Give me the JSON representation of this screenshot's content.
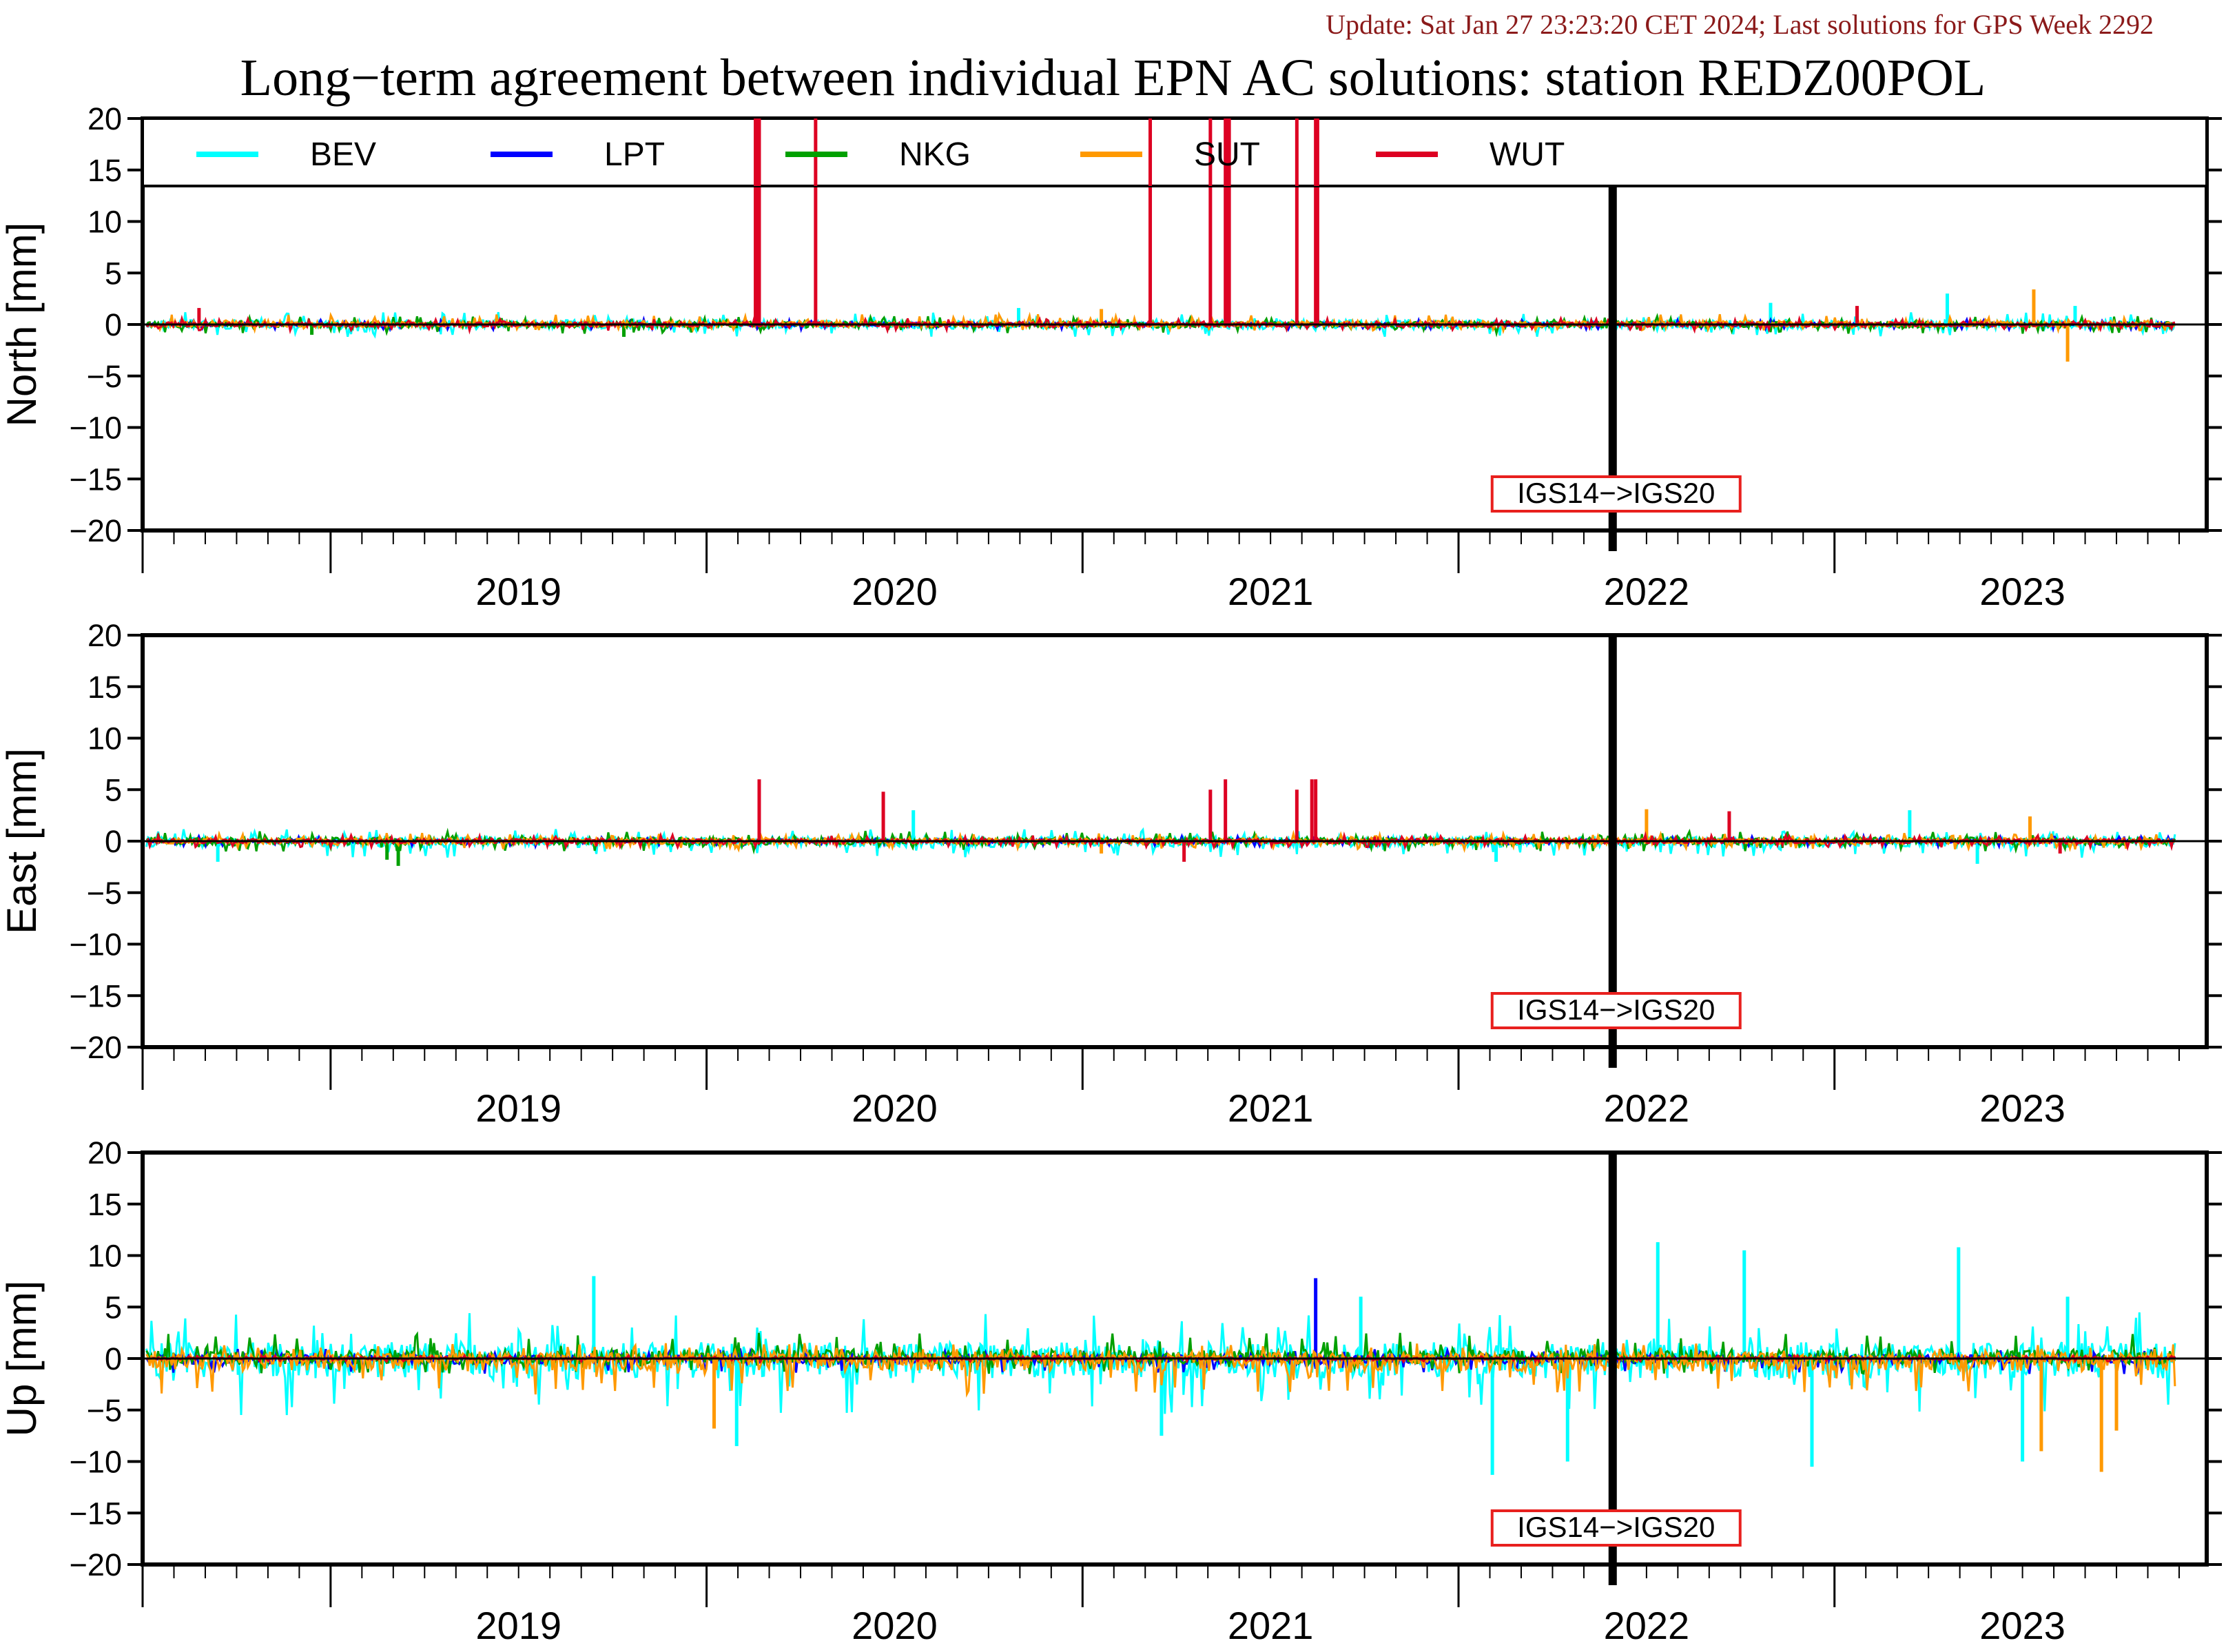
{
  "header": {
    "update_text": "Update: Sat Jan 27 23:23:20 CET 2024; Last solutions for GPS Week 2292",
    "title": "Long−term agreement between individual EPN AC solutions: station REDZ00POL"
  },
  "colors": {
    "update_text": "#8b1a1a",
    "frame": "#000000",
    "annotation_border": "#e8201e"
  },
  "legend": [
    {
      "name": "BEV",
      "color": "#00ffff"
    },
    {
      "name": "LPT",
      "color": "#0000ff"
    },
    {
      "name": "NKG",
      "color": "#00a000"
    },
    {
      "name": "SUT",
      "color": "#ff9900"
    },
    {
      "name": "WUT",
      "color": "#dd0022"
    }
  ],
  "chart_data": [
    {
      "type": "line",
      "panel": "north",
      "ylabel": "North [mm]",
      "ylim": [
        -20,
        20
      ],
      "yticks": [
        20,
        15,
        10,
        5,
        0,
        -5,
        -10,
        -15,
        -20
      ],
      "xlim": [
        2018.5,
        2023.99
      ],
      "xtick_labels": [
        "2019",
        "2020",
        "2021",
        "2022",
        "2023"
      ],
      "xtick_years": [
        2019,
        2020,
        2021,
        2022,
        2023
      ],
      "frame_change": {
        "x": 2022.41,
        "label": "IGS14−>IGS20"
      },
      "series": [
        {
          "name": "BEV",
          "spread": [
            -1.2,
            1.2
          ],
          "spikes": [
            [
              2020.83,
              1.6
            ],
            [
              2022.83,
              2.1
            ],
            [
              2023.3,
              3.0
            ],
            [
              2023.64,
              1.8
            ]
          ]
        },
        {
          "name": "LPT",
          "spread": [
            -0.5,
            0.5
          ],
          "spikes": []
        },
        {
          "name": "NKG",
          "spread": [
            -0.9,
            0.8
          ],
          "spikes": [
            [
              2018.95,
              -1.0
            ],
            [
              2019.78,
              -1.2
            ]
          ]
        },
        {
          "name": "SUT",
          "spread": [
            -0.6,
            1.0
          ],
          "spikes": [
            [
              2023.53,
              3.4
            ],
            [
              2023.62,
              -3.6
            ],
            [
              2021.05,
              1.5
            ]
          ]
        },
        {
          "name": "WUT",
          "spread": [
            -0.6,
            0.6
          ],
          "spikes": [
            [
              2020.13,
              20
            ],
            [
              2020.135,
              20
            ],
            [
              2020.14,
              20
            ],
            [
              2020.29,
              20
            ],
            [
              2021.18,
              20
            ],
            [
              2021.34,
              20
            ],
            [
              2021.38,
              20
            ],
            [
              2021.385,
              20
            ],
            [
              2021.39,
              20
            ],
            [
              2021.57,
              20
            ],
            [
              2021.62,
              20
            ],
            [
              2021.625,
              20
            ],
            [
              2018.65,
              1.6
            ],
            [
              2023.06,
              1.8
            ]
          ]
        }
      ]
    },
    {
      "type": "line",
      "panel": "east",
      "ylabel": "East [mm]",
      "ylim": [
        -20,
        20
      ],
      "yticks": [
        20,
        15,
        10,
        5,
        0,
        -5,
        -10,
        -15,
        -20
      ],
      "xlim": [
        2018.5,
        2023.99
      ],
      "xtick_labels": [
        "2019",
        "2020",
        "2021",
        "2022",
        "2023"
      ],
      "xtick_years": [
        2019,
        2020,
        2021,
        2022,
        2023
      ],
      "frame_change": {
        "x": 2022.41,
        "label": "IGS14−>IGS20"
      },
      "series": [
        {
          "name": "BEV",
          "spread": [
            -1.6,
            1.2
          ],
          "spikes": [
            [
              2018.7,
              -2.0
            ],
            [
              2020.55,
              3.0
            ],
            [
              2022.1,
              -2.0
            ],
            [
              2023.2,
              3.0
            ],
            [
              2023.38,
              -2.2
            ]
          ]
        },
        {
          "name": "LPT",
          "spread": [
            -0.5,
            0.5
          ],
          "spikes": []
        },
        {
          "name": "NKG",
          "spread": [
            -1.0,
            1.0
          ],
          "spikes": [
            [
              2019.18,
              -2.4
            ],
            [
              2019.15,
              -1.8
            ]
          ]
        },
        {
          "name": "SUT",
          "spread": [
            -0.8,
            0.8
          ],
          "spikes": [
            [
              2022.5,
              3.1
            ],
            [
              2023.52,
              2.4
            ],
            [
              2021.05,
              -1.2
            ]
          ]
        },
        {
          "name": "WUT",
          "spread": [
            -0.6,
            0.6
          ],
          "spikes": [
            [
              2020.14,
              6.0
            ],
            [
              2020.47,
              4.8
            ],
            [
              2021.34,
              5.0
            ],
            [
              2021.38,
              6.0
            ],
            [
              2021.57,
              5.0
            ],
            [
              2021.61,
              6.0
            ],
            [
              2021.62,
              6.0
            ],
            [
              2021.27,
              -2.0
            ],
            [
              2022.72,
              2.9
            ],
            [
              2023.6,
              -1.2
            ]
          ]
        }
      ]
    },
    {
      "type": "line",
      "panel": "up",
      "ylabel": "Up [mm]",
      "ylim": [
        -20,
        20
      ],
      "yticks": [
        20,
        15,
        10,
        5,
        0,
        -5,
        -10,
        -15,
        -20
      ],
      "xlim": [
        2018.5,
        2023.99
      ],
      "xtick_labels": [
        "2019",
        "2020",
        "2021",
        "2022",
        "2023"
      ],
      "xtick_years": [
        2019,
        2020,
        2021,
        2022,
        2023
      ],
      "frame_change": {
        "x": 2022.41,
        "label": "IGS14−>IGS20"
      },
      "series": [
        {
          "name": "BEV",
          "spread": [
            -5.5,
            4.5
          ],
          "spikes": [
            [
              2019.7,
              8.0
            ],
            [
              2020.08,
              -8.5
            ],
            [
              2021.21,
              -7.5
            ],
            [
              2021.74,
              6.0
            ],
            [
              2022.09,
              -11.3
            ],
            [
              2022.29,
              -10.0
            ],
            [
              2022.53,
              11.3
            ],
            [
              2022.76,
              10.5
            ],
            [
              2022.94,
              -10.5
            ],
            [
              2023.33,
              10.8
            ],
            [
              2023.5,
              -10.0
            ],
            [
              2023.62,
              6.0
            ]
          ]
        },
        {
          "name": "LPT",
          "spread": [
            -1.5,
            1.0
          ],
          "spikes": [
            [
              2021.62,
              7.8
            ]
          ]
        },
        {
          "name": "NKG",
          "spread": [
            -1.5,
            2.5
          ],
          "spikes": []
        },
        {
          "name": "SUT",
          "spread": [
            -3.5,
            1.5
          ],
          "spikes": [
            [
              2020.02,
              -6.8
            ],
            [
              2023.55,
              -9.0
            ],
            [
              2023.71,
              -11.0
            ],
            [
              2023.75,
              -7.0
            ]
          ]
        },
        {
          "name": "WUT",
          "spread": [
            -0.3,
            0.3
          ],
          "spikes": []
        }
      ]
    }
  ]
}
